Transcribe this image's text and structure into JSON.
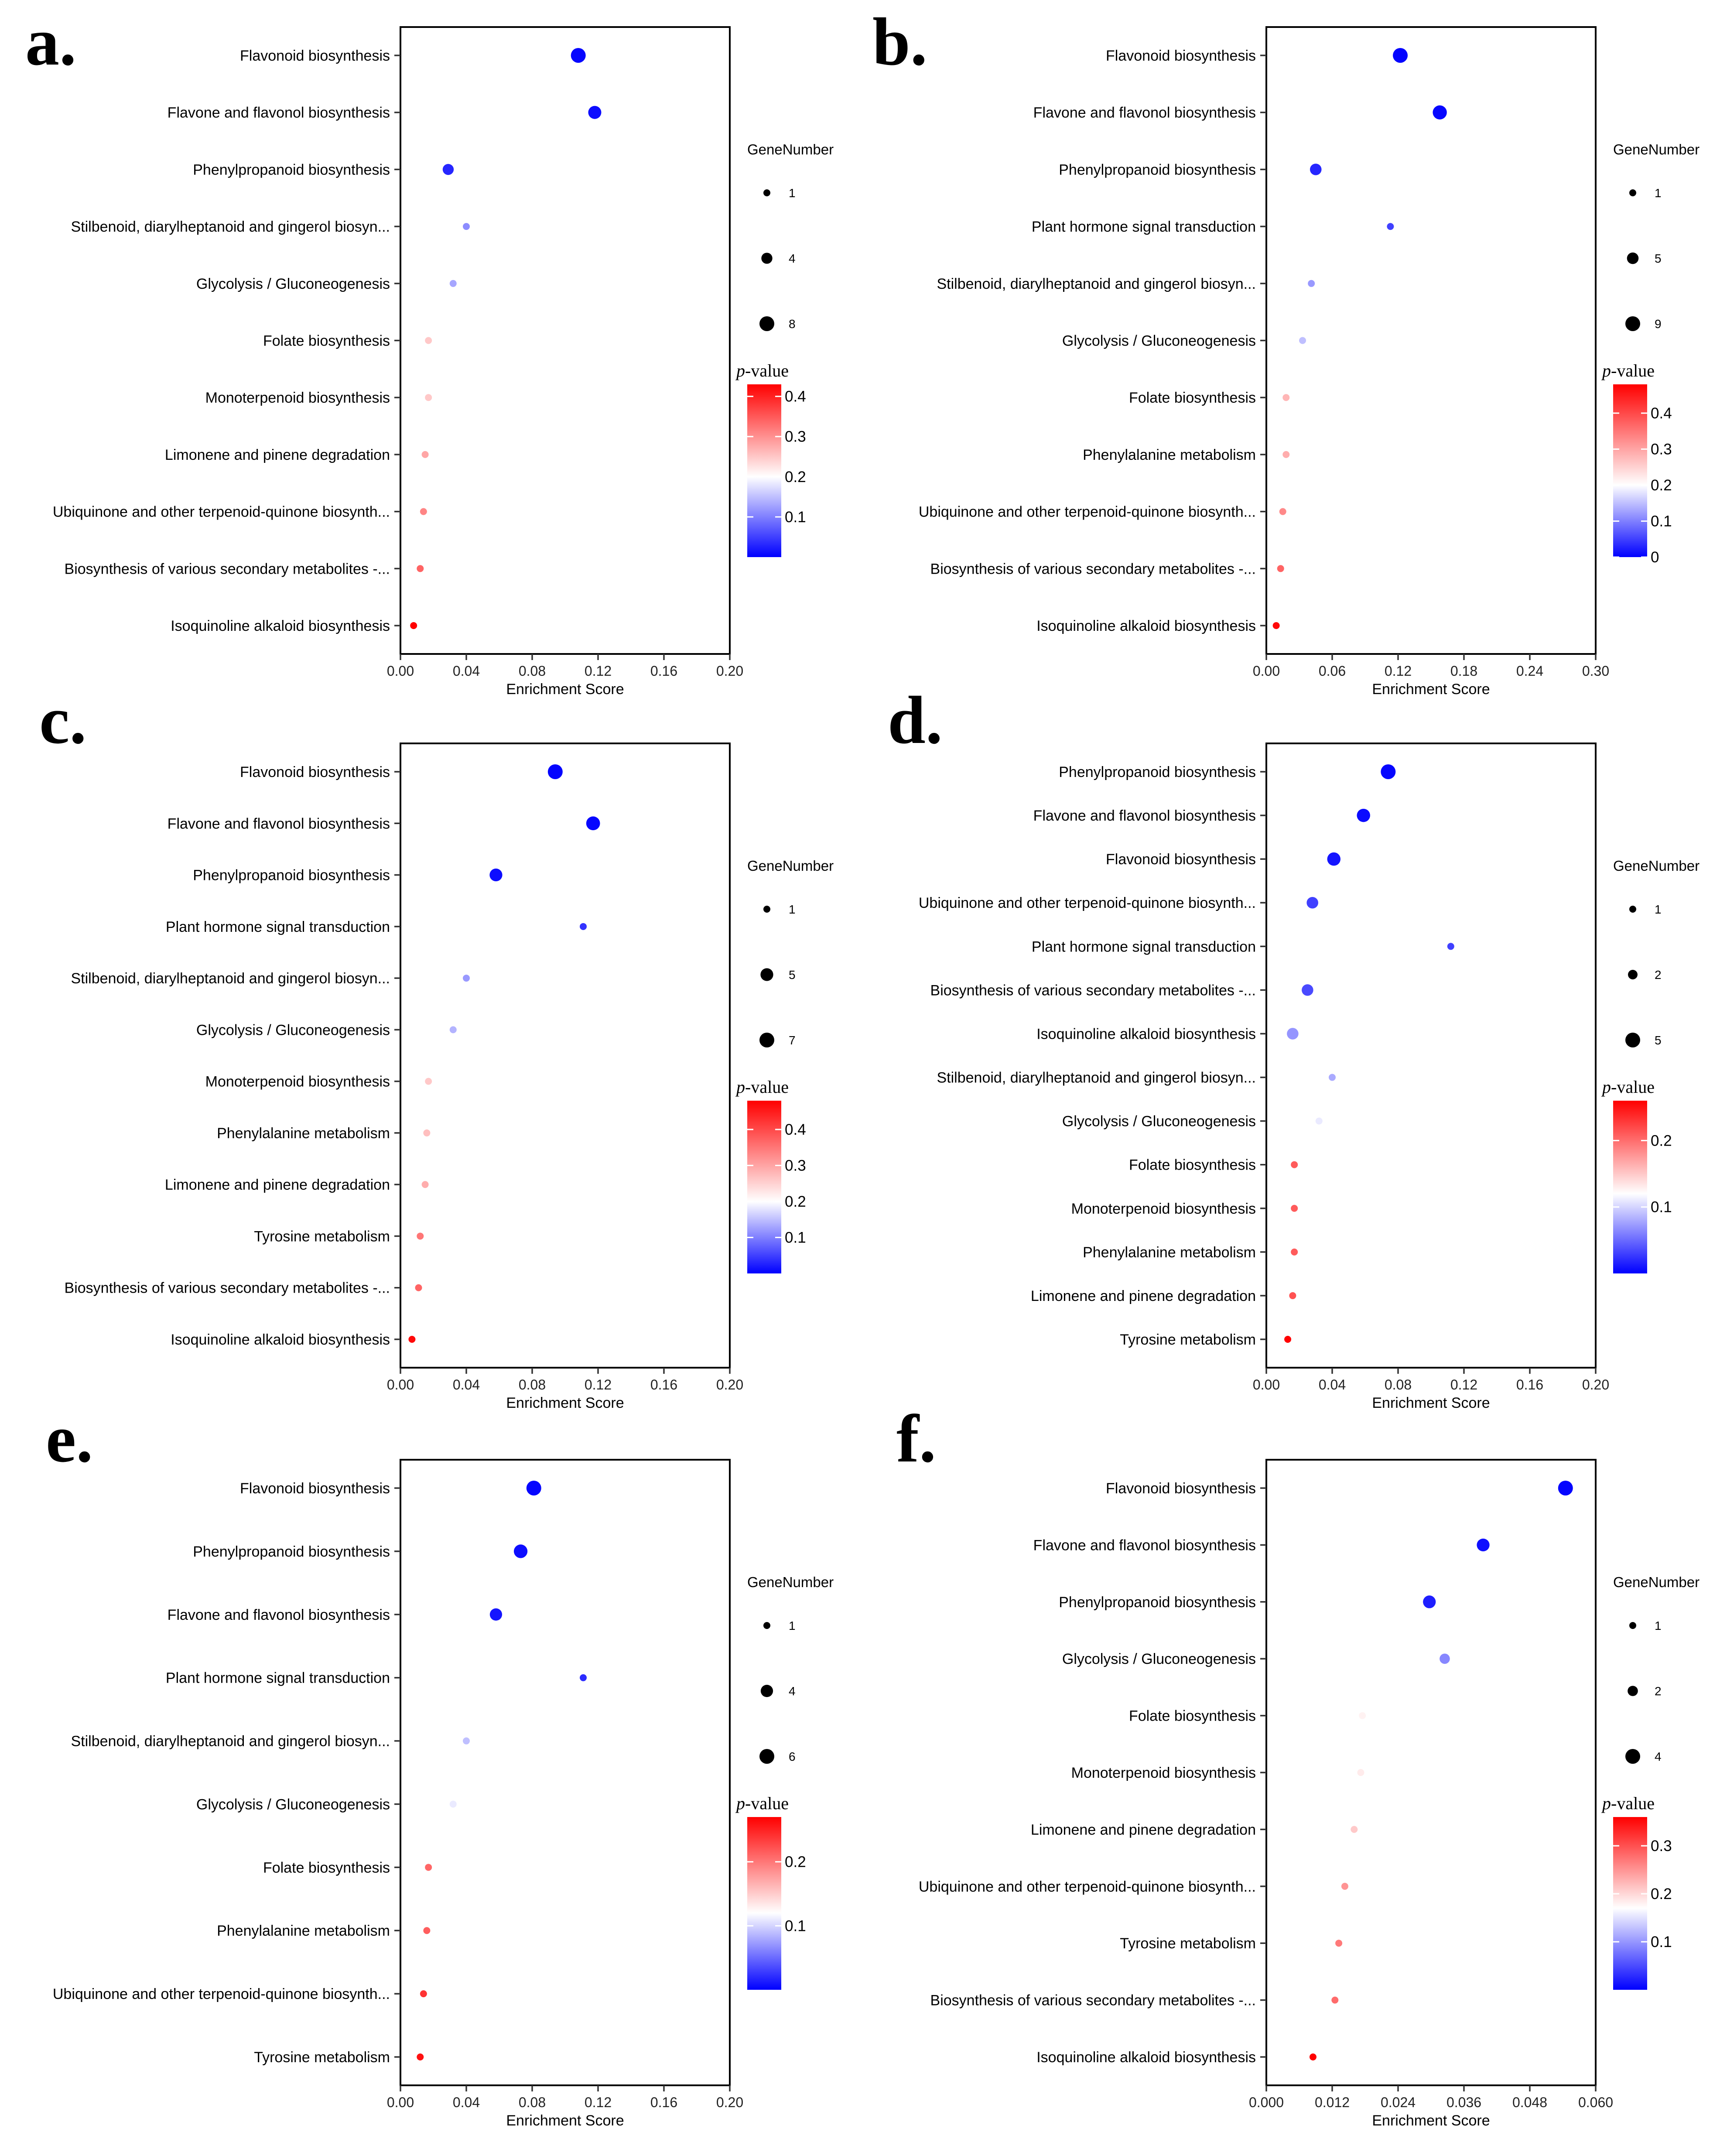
{
  "colors": {
    "low": "#0000ff",
    "mid": "#ffffff",
    "high": "#ff0000",
    "grid": "#ebebeb"
  },
  "chart_data": [
    {
      "panel": "a.",
      "type": "scatter",
      "xlabel": "Enrichment Score",
      "xlim": [
        0,
        0.2
      ],
      "xticks": [
        "0.00",
        "0.04",
        "0.08",
        "0.12",
        "0.16",
        "0.20"
      ],
      "size_legend_title": "GeneNumber",
      "size_legend": [
        1,
        4,
        8
      ],
      "color_legend_title": "p-value",
      "color_range": [
        0.0,
        0.43
      ],
      "color_mid": 0.2,
      "color_ticks": [
        "0.1",
        "0.2",
        "0.3",
        "0.4"
      ],
      "points": [
        {
          "term": "Flavonoid biosynthesis",
          "x": 0.108,
          "p": 0.005,
          "genes": 8
        },
        {
          "term": "Flavone and flavonol biosynthesis",
          "x": 0.118,
          "p": 0.01,
          "genes": 6
        },
        {
          "term": "Phenylpropanoid biosynthesis",
          "x": 0.029,
          "p": 0.03,
          "genes": 4
        },
        {
          "term": "Stilbenoid, diarylheptanoid and gingerol biosyn...",
          "x": 0.04,
          "p": 0.11,
          "genes": 1
        },
        {
          "term": "Glycolysis / Gluconeogenesis",
          "x": 0.032,
          "p": 0.13,
          "genes": 1
        },
        {
          "term": "Folate biosynthesis",
          "x": 0.017,
          "p": 0.25,
          "genes": 1
        },
        {
          "term": "Monoterpenoid biosynthesis",
          "x": 0.017,
          "p": 0.25,
          "genes": 1
        },
        {
          "term": "Limonene and pinene degradation",
          "x": 0.015,
          "p": 0.28,
          "genes": 1
        },
        {
          "term": "Ubiquinone and other terpenoid-quinone biosynth...",
          "x": 0.014,
          "p": 0.31,
          "genes": 1
        },
        {
          "term": "Biosynthesis of various secondary metabolites -...",
          "x": 0.012,
          "p": 0.34,
          "genes": 1
        },
        {
          "term": "Isoquinoline alkaloid biosynthesis",
          "x": 0.008,
          "p": 0.43,
          "genes": 1
        }
      ]
    },
    {
      "panel": "b.",
      "type": "scatter",
      "xlabel": "Enrichment Score",
      "xlim": [
        0,
        0.3
      ],
      "xticks": [
        "0.00",
        "0.06",
        "0.12",
        "0.18",
        "0.24",
        "0.30"
      ],
      "size_legend_title": "GeneNumber",
      "size_legend": [
        1,
        5,
        9
      ],
      "color_legend_title": "p-value",
      "color_range": [
        0.0,
        0.48
      ],
      "color_mid": 0.2,
      "color_ticks": [
        "0",
        "0.1",
        "0.2",
        "0.3",
        "0.4"
      ],
      "points": [
        {
          "term": "Flavonoid biosynthesis",
          "x": 0.122,
          "p": 0.003,
          "genes": 9
        },
        {
          "term": "Flavone and flavonol biosynthesis",
          "x": 0.158,
          "p": 0.005,
          "genes": 8
        },
        {
          "term": "Phenylpropanoid biosynthesis",
          "x": 0.045,
          "p": 0.03,
          "genes": 5
        },
        {
          "term": "Plant hormone signal transduction",
          "x": 0.113,
          "p": 0.05,
          "genes": 1
        },
        {
          "term": "Stilbenoid, diarylheptanoid and gingerol biosyn...",
          "x": 0.041,
          "p": 0.12,
          "genes": 1
        },
        {
          "term": "Glycolysis / Gluconeogenesis",
          "x": 0.033,
          "p": 0.15,
          "genes": 1
        },
        {
          "term": "Folate biosynthesis",
          "x": 0.018,
          "p": 0.28,
          "genes": 1
        },
        {
          "term": "Phenylalanine metabolism",
          "x": 0.018,
          "p": 0.29,
          "genes": 1
        },
        {
          "term": "Ubiquinone and other terpenoid-quinone biosynth...",
          "x": 0.015,
          "p": 0.33,
          "genes": 1
        },
        {
          "term": "Biosynthesis of various secondary metabolites -...",
          "x": 0.013,
          "p": 0.37,
          "genes": 1
        },
        {
          "term": "Isoquinoline alkaloid biosynthesis",
          "x": 0.009,
          "p": 0.47,
          "genes": 1
        }
      ]
    },
    {
      "panel": "c.",
      "type": "scatter",
      "xlabel": "Enrichment Score",
      "xlim": [
        0,
        0.2
      ],
      "xticks": [
        "0.00",
        "0.04",
        "0.08",
        "0.12",
        "0.16",
        "0.20"
      ],
      "size_legend_title": "GeneNumber",
      "size_legend": [
        1,
        5,
        7
      ],
      "color_legend_title": "p-value",
      "color_range": [
        0.0,
        0.48
      ],
      "color_mid": 0.2,
      "color_ticks": [
        "0.1",
        "0.2",
        "0.3",
        "0.4"
      ],
      "points": [
        {
          "term": "Flavonoid biosynthesis",
          "x": 0.094,
          "p": 0.003,
          "genes": 7
        },
        {
          "term": "Flavone and flavonol biosynthesis",
          "x": 0.117,
          "p": 0.005,
          "genes": 6
        },
        {
          "term": "Phenylpropanoid biosynthesis",
          "x": 0.058,
          "p": 0.01,
          "genes": 5
        },
        {
          "term": "Plant hormone signal transduction",
          "x": 0.111,
          "p": 0.04,
          "genes": 1
        },
        {
          "term": "Stilbenoid, diarylheptanoid and gingerol biosyn...",
          "x": 0.04,
          "p": 0.12,
          "genes": 1
        },
        {
          "term": "Glycolysis / Gluconeogenesis",
          "x": 0.032,
          "p": 0.14,
          "genes": 1
        },
        {
          "term": "Monoterpenoid biosynthesis",
          "x": 0.017,
          "p": 0.26,
          "genes": 1
        },
        {
          "term": "Phenylalanine metabolism",
          "x": 0.016,
          "p": 0.27,
          "genes": 1
        },
        {
          "term": "Limonene and pinene degradation",
          "x": 0.015,
          "p": 0.29,
          "genes": 1
        },
        {
          "term": "Tyrosine metabolism",
          "x": 0.012,
          "p": 0.35,
          "genes": 1
        },
        {
          "term": "Biosynthesis of various secondary metabolites -...",
          "x": 0.011,
          "p": 0.37,
          "genes": 1
        },
        {
          "term": "Isoquinoline alkaloid biosynthesis",
          "x": 0.007,
          "p": 0.47,
          "genes": 1
        }
      ]
    },
    {
      "panel": "d.",
      "type": "scatter",
      "xlabel": "Enrichment Score",
      "xlim": [
        0,
        0.2
      ],
      "xticks": [
        "0.00",
        "0.04",
        "0.08",
        "0.12",
        "0.16",
        "0.20"
      ],
      "size_legend_title": "GeneNumber",
      "size_legend": [
        1,
        2,
        5
      ],
      "color_legend_title": "p-value",
      "color_range": [
        0.0,
        0.26
      ],
      "color_mid": 0.12,
      "color_ticks": [
        "0.1",
        "0.2"
      ],
      "points": [
        {
          "term": "Phenylpropanoid biosynthesis",
          "x": 0.074,
          "p": 0.003,
          "genes": 5
        },
        {
          "term": "Flavone and flavonol biosynthesis",
          "x": 0.059,
          "p": 0.005,
          "genes": 4
        },
        {
          "term": "Flavonoid biosynthesis",
          "x": 0.041,
          "p": 0.01,
          "genes": 4
        },
        {
          "term": "Ubiquinone and other terpenoid-quinone biosynth...",
          "x": 0.028,
          "p": 0.03,
          "genes": 3
        },
        {
          "term": "Plant hormone signal transduction",
          "x": 0.112,
          "p": 0.03,
          "genes": 1
        },
        {
          "term": "Biosynthesis of various secondary metabolites -...",
          "x": 0.025,
          "p": 0.035,
          "genes": 3
        },
        {
          "term": "Isoquinoline alkaloid biosynthesis",
          "x": 0.016,
          "p": 0.07,
          "genes": 3
        },
        {
          "term": "Stilbenoid, diarylheptanoid and gingerol biosyn...",
          "x": 0.04,
          "p": 0.08,
          "genes": 1
        },
        {
          "term": "Glycolysis / Gluconeogenesis",
          "x": 0.032,
          "p": 0.11,
          "genes": 1
        },
        {
          "term": "Folate biosynthesis",
          "x": 0.017,
          "p": 0.21,
          "genes": 1
        },
        {
          "term": "Monoterpenoid biosynthesis",
          "x": 0.017,
          "p": 0.21,
          "genes": 1
        },
        {
          "term": "Phenylalanine metabolism",
          "x": 0.017,
          "p": 0.21,
          "genes": 1
        },
        {
          "term": "Limonene and pinene degradation",
          "x": 0.016,
          "p": 0.215,
          "genes": 1
        },
        {
          "term": "Tyrosine metabolism",
          "x": 0.013,
          "p": 0.26,
          "genes": 1
        }
      ]
    },
    {
      "panel": "e.",
      "type": "scatter",
      "xlabel": "Enrichment Score",
      "xlim": [
        0,
        0.2
      ],
      "xticks": [
        "0.00",
        "0.04",
        "0.08",
        "0.12",
        "0.16",
        "0.20"
      ],
      "size_legend_title": "GeneNumber",
      "size_legend": [
        1,
        4,
        6
      ],
      "color_legend_title": "p-value",
      "color_range": [
        0.0,
        0.27
      ],
      "color_mid": 0.12,
      "color_ticks": [
        "0.1",
        "0.2"
      ],
      "points": [
        {
          "term": "Flavonoid biosynthesis",
          "x": 0.081,
          "p": 0.003,
          "genes": 6
        },
        {
          "term": "Phenylpropanoid biosynthesis",
          "x": 0.073,
          "p": 0.006,
          "genes": 5
        },
        {
          "term": "Flavone and flavonol biosynthesis",
          "x": 0.058,
          "p": 0.01,
          "genes": 4
        },
        {
          "term": "Plant hormone signal transduction",
          "x": 0.111,
          "p": 0.02,
          "genes": 1
        },
        {
          "term": "Stilbenoid, diarylheptanoid and gingerol biosyn...",
          "x": 0.04,
          "p": 0.09,
          "genes": 1
        },
        {
          "term": "Glycolysis / Gluconeogenesis",
          "x": 0.032,
          "p": 0.11,
          "genes": 1
        },
        {
          "term": "Folate biosynthesis",
          "x": 0.017,
          "p": 0.21,
          "genes": 1
        },
        {
          "term": "Phenylalanine metabolism",
          "x": 0.016,
          "p": 0.215,
          "genes": 1
        },
        {
          "term": "Ubiquinone and other terpenoid-quinone biosynth...",
          "x": 0.014,
          "p": 0.24,
          "genes": 1
        },
        {
          "term": "Tyrosine metabolism",
          "x": 0.012,
          "p": 0.26,
          "genes": 1
        }
      ]
    },
    {
      "panel": "f.",
      "type": "scatter",
      "xlabel": "Enrichment Score",
      "xlim": [
        0,
        0.06
      ],
      "xticks": [
        "0.000",
        "0.012",
        "0.024",
        "0.036",
        "0.048",
        "0.060"
      ],
      "size_legend_title": "GeneNumber",
      "size_legend": [
        1,
        2,
        4
      ],
      "color_legend_title": "p-value",
      "color_range": [
        0.0,
        0.36
      ],
      "color_mid": 0.17,
      "color_ticks": [
        "0.1",
        "0.2",
        "0.3"
      ],
      "points": [
        {
          "term": "Flavonoid biosynthesis",
          "x": 0.0545,
          "p": 0.003,
          "genes": 4
        },
        {
          "term": "Flavone and flavonol biosynthesis",
          "x": 0.0395,
          "p": 0.01,
          "genes": 3
        },
        {
          "term": "Phenylpropanoid biosynthesis",
          "x": 0.0297,
          "p": 0.02,
          "genes": 3
        },
        {
          "term": "Glycolysis / Gluconeogenesis",
          "x": 0.0325,
          "p": 0.09,
          "genes": 2
        },
        {
          "term": "Folate biosynthesis",
          "x": 0.0175,
          "p": 0.18,
          "genes": 1
        },
        {
          "term": "Monoterpenoid biosynthesis",
          "x": 0.0172,
          "p": 0.185,
          "genes": 1
        },
        {
          "term": "Limonene and pinene degradation",
          "x": 0.016,
          "p": 0.21,
          "genes": 1
        },
        {
          "term": "Ubiquinone and other terpenoid-quinone biosynth...",
          "x": 0.0143,
          "p": 0.25,
          "genes": 1
        },
        {
          "term": "Tyrosine metabolism",
          "x": 0.0132,
          "p": 0.27,
          "genes": 1
        },
        {
          "term": "Biosynthesis of various secondary metabolites -...",
          "x": 0.0125,
          "p": 0.28,
          "genes": 1
        },
        {
          "term": "Isoquinoline alkaloid biosynthesis",
          "x": 0.0085,
          "p": 0.36,
          "genes": 1
        }
      ]
    }
  ]
}
